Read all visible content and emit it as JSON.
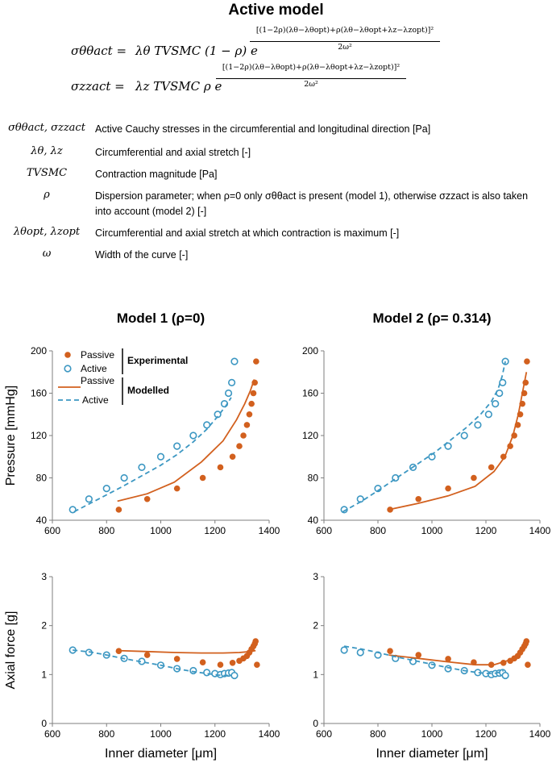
{
  "header": {
    "title": "Active model",
    "eq1_lhs": "σθθact =",
    "eq1_body": "λθ TVSMC (1 − ρ) e",
    "eq1_exp_num": "[(1−2ρ)(λθ−λθopt)+ρ(λθ−λθopt+λz−λzopt)]²",
    "eq1_exp_den": "2ω²",
    "eq2_lhs": "σzzact =",
    "eq2_body": "λz TVSMC ρ e",
    "eq2_exp_num": "[(1−2ρ)(λθ−λθopt)+ρ(λθ−λθopt+λz−λzopt)]²",
    "eq2_exp_den": "2ω²"
  },
  "definitions": [
    {
      "symbol": "σθθact, σzzact",
      "text": "Active Cauchy stresses in the circumferential and longitudinal direction [Pa]"
    },
    {
      "symbol": "λθ, λz",
      "text": "Circumferential and axial stretch [-]"
    },
    {
      "symbol": "TVSMC",
      "text": "Contraction magnitude [Pa]"
    },
    {
      "symbol": "ρ",
      "text": "Dispersion parameter; when ρ=0 only σθθact is present (model 1), otherwise σzzact is also taken into account (model 2) [-]"
    },
    {
      "symbol": "λθopt, λzopt",
      "text": "Circumferential and axial stretch at which contraction is maximum [-]"
    },
    {
      "symbol": "ω",
      "text": "Width of the curve [-]"
    }
  ],
  "colors": {
    "passive": "#D2601E",
    "active": "#3C97C2",
    "axis": "#7f7f7f"
  },
  "legend": {
    "passive": "Passive",
    "active": "Active",
    "experimental": "Experimental",
    "modelled": "Modelled"
  },
  "chart_data": [
    {
      "type": "scatter+line",
      "title": "Model 1 (ρ=0)",
      "ylabel": "Pressure [mmHg]",
      "xlabel": "",
      "xlim": [
        600,
        1400
      ],
      "ylim": [
        40,
        200
      ],
      "xticks": [
        600,
        800,
        1000,
        1200,
        1400
      ],
      "yticks": [
        40,
        80,
        120,
        160,
        200
      ],
      "series": [
        {
          "name": "Passive experimental",
          "style": "filled",
          "x": [
            845,
            950,
            1060,
            1155,
            1220,
            1265,
            1290,
            1305,
            1318,
            1327,
            1335,
            1342,
            1347,
            1352
          ],
          "y": [
            50,
            60,
            70,
            80,
            90,
            100,
            110,
            120,
            130,
            140,
            150,
            160,
            170,
            190
          ]
        },
        {
          "name": "Active experimental",
          "style": "open",
          "x": [
            675,
            735,
            800,
            865,
            930,
            1000,
            1060,
            1120,
            1170,
            1210,
            1235,
            1250,
            1262,
            1272
          ],
          "y": [
            50,
            60,
            70,
            80,
            90,
            100,
            110,
            120,
            130,
            140,
            150,
            160,
            170,
            190
          ]
        },
        {
          "name": "Passive modelled",
          "style": "solid",
          "x": [
            840,
            950,
            1050,
            1150,
            1230,
            1280,
            1310,
            1330,
            1345
          ],
          "y": [
            58,
            65,
            76,
            95,
            115,
            135,
            150,
            162,
            173
          ]
        },
        {
          "name": "Active modelled",
          "style": "dashed",
          "x": [
            680,
            740,
            800,
            860,
            930,
            1000,
            1060,
            1120,
            1170,
            1210,
            1240,
            1260
          ],
          "y": [
            48,
            56,
            64,
            72,
            82,
            92,
            102,
            114,
            126,
            138,
            148,
            156
          ]
        }
      ]
    },
    {
      "type": "scatter+line",
      "title": "Model 2 (ρ= 0.314)",
      "ylabel": "",
      "xlabel": "",
      "xlim": [
        600,
        1400
      ],
      "ylim": [
        40,
        200
      ],
      "xticks": [
        600,
        800,
        1000,
        1200,
        1400
      ],
      "yticks": [
        40,
        80,
        120,
        160,
        200
      ],
      "series": [
        {
          "name": "Passive experimental",
          "style": "filled",
          "x": [
            845,
            950,
            1060,
            1155,
            1220,
            1265,
            1290,
            1305,
            1318,
            1327,
            1335,
            1342,
            1347,
            1352
          ],
          "y": [
            50,
            60,
            70,
            80,
            90,
            100,
            110,
            120,
            130,
            140,
            150,
            160,
            170,
            190
          ]
        },
        {
          "name": "Active experimental",
          "style": "open",
          "x": [
            675,
            735,
            800,
            865,
            930,
            1000,
            1060,
            1120,
            1170,
            1210,
            1235,
            1250,
            1262,
            1272
          ],
          "y": [
            50,
            60,
            70,
            80,
            90,
            100,
            110,
            120,
            130,
            140,
            150,
            160,
            170,
            190
          ]
        },
        {
          "name": "Passive modelled",
          "style": "solid",
          "x": [
            840,
            950,
            1060,
            1160,
            1230,
            1270,
            1300,
            1320,
            1335,
            1350
          ],
          "y": [
            50,
            56,
            63,
            72,
            86,
            100,
            120,
            140,
            160,
            180
          ]
        },
        {
          "name": "Active modelled",
          "style": "dashed",
          "x": [
            670,
            740,
            800,
            870,
            940,
            1010,
            1070,
            1130,
            1180,
            1220,
            1245,
            1260,
            1272
          ],
          "y": [
            48,
            58,
            68,
            80,
            92,
            104,
            116,
            128,
            140,
            152,
            164,
            176,
            190
          ]
        }
      ]
    },
    {
      "type": "scatter+line",
      "title": "",
      "ylabel": "Axial force [g]",
      "xlabel": "Inner diameter [μm]",
      "xlim": [
        600,
        1400
      ],
      "ylim": [
        0,
        3
      ],
      "xticks": [
        600,
        800,
        1000,
        1200,
        1400
      ],
      "yticks": [
        0,
        1,
        2,
        3
      ],
      "series": [
        {
          "name": "Passive experimental",
          "style": "filled",
          "x": [
            845,
            950,
            1060,
            1155,
            1220,
            1265,
            1290,
            1305,
            1318,
            1327,
            1335,
            1342,
            1347,
            1350,
            1355
          ],
          "y": [
            1.48,
            1.4,
            1.32,
            1.25,
            1.2,
            1.24,
            1.28,
            1.33,
            1.38,
            1.45,
            1.52,
            1.58,
            1.63,
            1.68,
            1.2
          ]
        },
        {
          "name": "Active experimental",
          "style": "open",
          "x": [
            675,
            735,
            800,
            865,
            930,
            1000,
            1060,
            1120,
            1170,
            1200,
            1220,
            1235,
            1250,
            1262,
            1272
          ],
          "y": [
            1.5,
            1.45,
            1.4,
            1.33,
            1.27,
            1.19,
            1.12,
            1.08,
            1.04,
            1.02,
            1.0,
            1.02,
            1.03,
            1.04,
            0.98
          ]
        },
        {
          "name": "Passive modelled",
          "style": "solid",
          "x": [
            840,
            950,
            1050,
            1150,
            1230,
            1290,
            1330,
            1350
          ],
          "y": [
            1.49,
            1.47,
            1.45,
            1.44,
            1.44,
            1.45,
            1.47,
            1.49
          ]
        },
        {
          "name": "Active modelled",
          "style": "dashed",
          "x": [
            675,
            740,
            800,
            860,
            930,
            1000,
            1060,
            1120,
            1170,
            1210,
            1240,
            1260
          ],
          "y": [
            1.5,
            1.46,
            1.4,
            1.33,
            1.26,
            1.19,
            1.12,
            1.06,
            1.02,
            0.99,
            0.98,
            0.98
          ]
        }
      ]
    },
    {
      "type": "scatter+line",
      "title": "",
      "ylabel": "",
      "xlabel": "Inner diameter [μm]",
      "xlim": [
        600,
        1400
      ],
      "ylim": [
        0,
        3
      ],
      "xticks": [
        600,
        800,
        1000,
        1200,
        1400
      ],
      "yticks": [
        0,
        1,
        2,
        3
      ],
      "series": [
        {
          "name": "Passive experimental",
          "style": "filled",
          "x": [
            845,
            950,
            1060,
            1155,
            1220,
            1265,
            1290,
            1305,
            1318,
            1327,
            1335,
            1342,
            1347,
            1350,
            1355
          ],
          "y": [
            1.48,
            1.4,
            1.32,
            1.25,
            1.2,
            1.24,
            1.28,
            1.33,
            1.38,
            1.45,
            1.52,
            1.58,
            1.63,
            1.68,
            1.2
          ]
        },
        {
          "name": "Active experimental",
          "style": "open",
          "x": [
            675,
            735,
            800,
            865,
            930,
            1000,
            1060,
            1120,
            1170,
            1200,
            1220,
            1235,
            1250,
            1262,
            1272
          ],
          "y": [
            1.5,
            1.45,
            1.4,
            1.33,
            1.27,
            1.19,
            1.12,
            1.08,
            1.04,
            1.02,
            1.0,
            1.02,
            1.03,
            1.04,
            0.98
          ]
        },
        {
          "name": "Passive modelled",
          "style": "solid",
          "x": [
            840,
            950,
            1060,
            1160,
            1230,
            1290,
            1320,
            1345
          ],
          "y": [
            1.4,
            1.33,
            1.26,
            1.2,
            1.2,
            1.3,
            1.42,
            1.57
          ]
        },
        {
          "name": "Active modelled",
          "style": "dashed",
          "x": [
            675,
            740,
            800,
            860,
            930,
            1000,
            1060,
            1120,
            1170,
            1210,
            1240,
            1265
          ],
          "y": [
            1.58,
            1.52,
            1.45,
            1.37,
            1.29,
            1.21,
            1.14,
            1.08,
            1.04,
            1.02,
            1.03,
            1.08
          ]
        }
      ]
    }
  ]
}
